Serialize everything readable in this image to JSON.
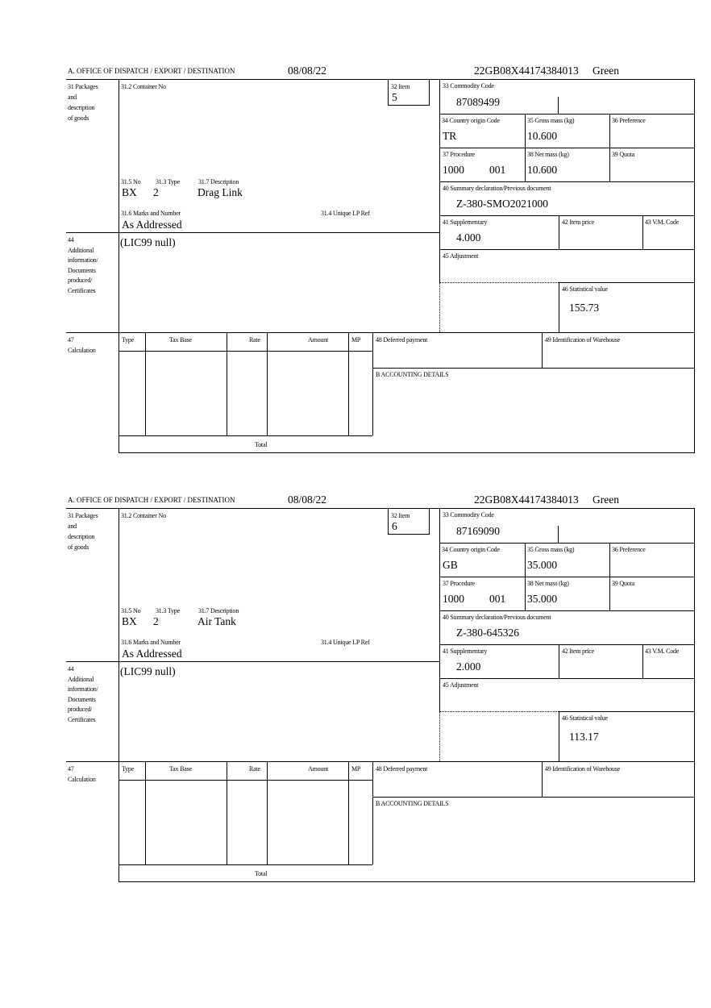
{
  "labels": {
    "office": "A.  OFFICE OF DISPATCH / EXPORT / DESTINATION",
    "packages": [
      "31 Packages",
      "and",
      "description",
      "of goods"
    ],
    "container_no": "31.2 Container No",
    "item": "32 Item",
    "pkg_no": "31.5 No",
    "pkg_type": "31.3 Type",
    "pkg_desc": "31.7 Description",
    "marks": "31.6 Marks and Number",
    "unique_lp_ref": "31.4 Unique LP Ref",
    "additional": [
      "44",
      "Additional",
      "information/",
      "Documents",
      "produced/",
      "Certificates"
    ],
    "commodity_code": "33 Commodity Code",
    "country_origin": "34 Country origin Code",
    "gross_mass": "35 Gross mass (kg)",
    "preference": "36 Preference",
    "procedure": "37 Procedure",
    "net_mass": "38 Net mass (kg)",
    "quota": "39 Quota",
    "summary_decl": "40 Summary declaration/Previous document",
    "supplementary": "41 Supplementary",
    "item_price": "42 Item price",
    "vm_code": "43 V.M. Code",
    "adjustment": "45 Adjustment",
    "statistical_value": "46 Statistical value",
    "calculation": [
      "47",
      "Calculation"
    ],
    "calc_cols": [
      "Type",
      "Tax Base",
      "Rate",
      "Amount",
      "MP"
    ],
    "total": "Total",
    "deferred_payment": "48 Deferred payment",
    "warehouse": "49 Identification of Warehouse",
    "accounting": "B ACCOUNTING DETAILS"
  },
  "forms": [
    {
      "date": "08/08/22",
      "reference": "22GB08X44174384013",
      "route": "Green",
      "item": "5",
      "pkg_no": "BX",
      "pkg_type": "2",
      "pkg_desc": "Drag Link",
      "marks": "As Addressed",
      "additional_info": "(LIC99 null)",
      "commodity_code": "87089499",
      "country_origin": "TR",
      "gross_mass": "10.600",
      "procedure": "1000",
      "procedure_add": "001",
      "net_mass": "10.600",
      "summary_decl": "Z-380-SMO2021000",
      "supplementary": "4.000",
      "statistical_value": "155.73"
    },
    {
      "date": "08/08/22",
      "reference": "22GB08X44174384013",
      "route": "Green",
      "item": "6",
      "pkg_no": "BX",
      "pkg_type": "2",
      "pkg_desc": "Air Tank",
      "marks": "As Addressed",
      "additional_info": "(LIC99 null)",
      "commodity_code": "87169090",
      "country_origin": "GB",
      "gross_mass": "35.000",
      "procedure": "1000",
      "procedure_add": "001",
      "net_mass": "35.000",
      "summary_decl": "Z-380-645326",
      "supplementary": "2.000",
      "statistical_value": "113.17"
    }
  ]
}
